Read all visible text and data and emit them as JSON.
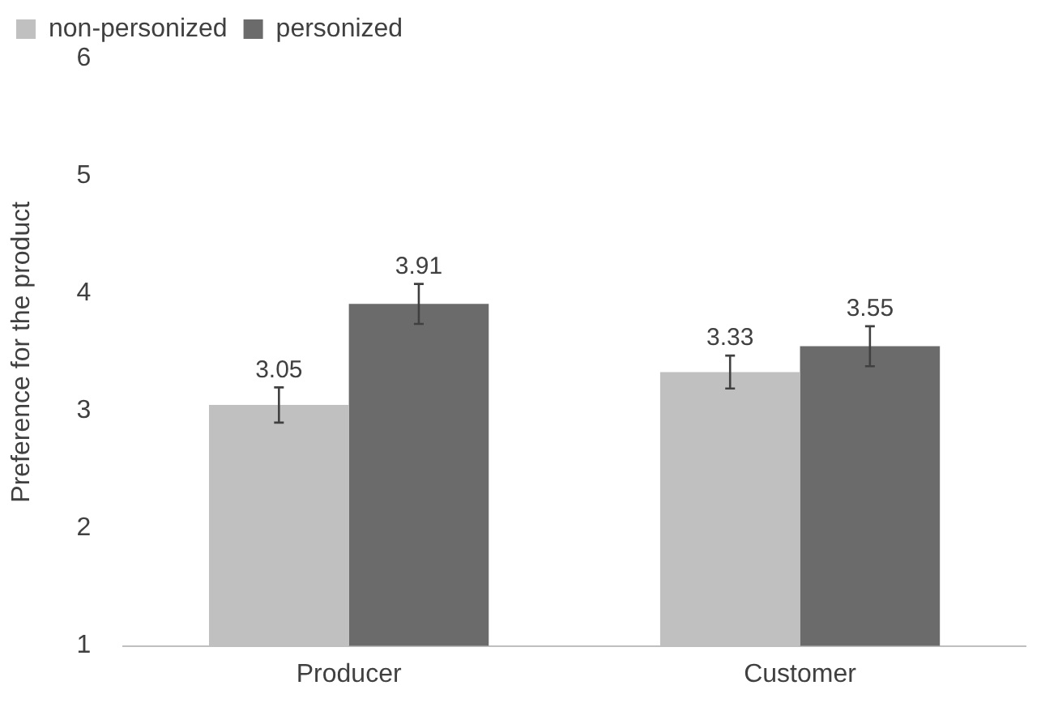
{
  "chart_data": {
    "type": "bar",
    "ylabel": "Preference for the product",
    "categories": [
      "Producer",
      "Customer"
    ],
    "series": [
      {
        "name": "non-personized",
        "color": "#c0c0c0",
        "values": [
          3.05,
          3.33
        ],
        "errors": [
          0.15,
          0.14
        ]
      },
      {
        "name": "personized",
        "color": "#6b6b6b",
        "values": [
          3.91,
          3.55
        ],
        "errors": [
          0.17,
          0.17
        ]
      }
    ],
    "ylim": [
      1,
      6
    ],
    "yticks": [
      1,
      2,
      3,
      4,
      5,
      6
    ],
    "grid": false,
    "legend": "top",
    "data_labels": true
  }
}
